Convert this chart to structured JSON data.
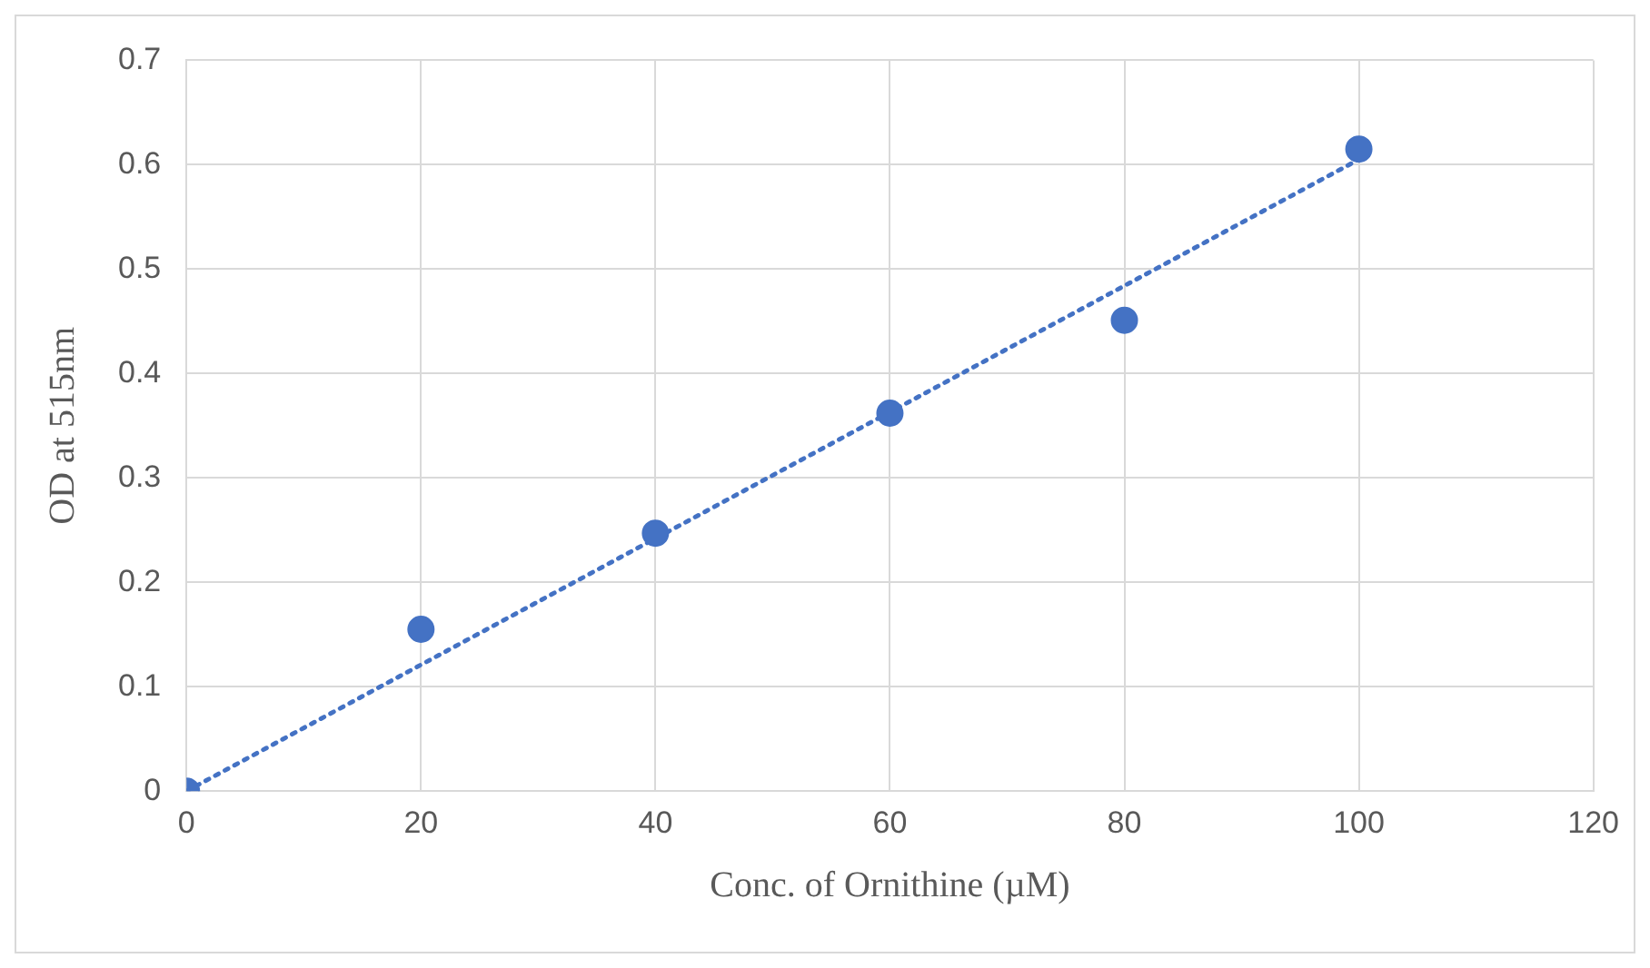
{
  "chart_data": {
    "type": "scatter",
    "xlabel": "Conc. of Ornithine (µM)",
    "ylabel": "OD at 515nm",
    "xlim": [
      0,
      120
    ],
    "xticks": [
      0,
      20,
      40,
      60,
      80,
      100,
      120
    ],
    "ylim": [
      0,
      0.7
    ],
    "yticks": [
      0,
      0.1,
      0.2,
      0.3,
      0.4,
      0.5,
      0.6,
      0.7
    ],
    "grid": true,
    "legend": false,
    "marker": "circle",
    "series": [
      {
        "type": "scatter",
        "color": "#4472c4",
        "x": [
          0,
          20,
          40,
          60,
          80,
          100
        ],
        "values": [
          0,
          0.155,
          0.247,
          0.362,
          0.451,
          0.615
        ]
      },
      {
        "type": "line",
        "color": "#4472c4",
        "line_style": "dotted",
        "marker": "none",
        "x": [
          0,
          100
        ],
        "values": [
          0,
          0.605
        ]
      }
    ]
  }
}
